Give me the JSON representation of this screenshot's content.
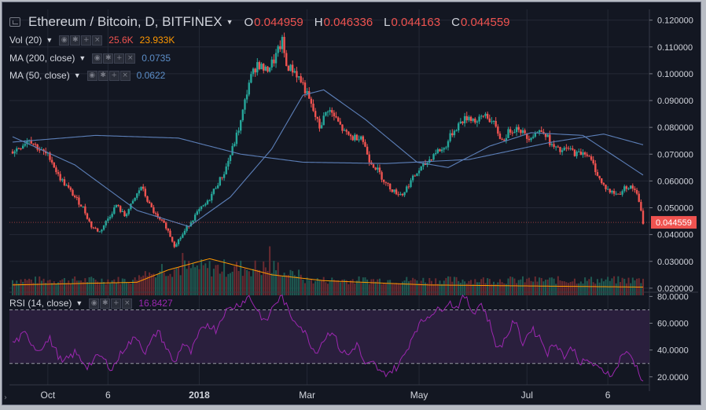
{
  "header": {
    "symbol_title": "Ethereum / Bitcoin, D, BITFINEX",
    "ohlc": [
      {
        "key": "O",
        "value": "0.044959"
      },
      {
        "key": "H",
        "value": "0.046336"
      },
      {
        "key": "L",
        "value": "0.044163"
      },
      {
        "key": "C",
        "value": "0.044559"
      }
    ]
  },
  "indicators": [
    {
      "id": "vol",
      "label": "Vol (20)",
      "values": [
        "25.6K",
        "23.933K"
      ],
      "colors": [
        "#ef5350",
        "#ff9800"
      ]
    },
    {
      "id": "ma200",
      "label": "MA (200, close)",
      "values": [
        "0.0735"
      ],
      "colors": [
        "#5c7fb8"
      ]
    },
    {
      "id": "ma50",
      "label": "MA (50, close)",
      "values": [
        "0.0622"
      ],
      "colors": [
        "#5c7fb8"
      ]
    }
  ],
  "rsi": {
    "label": "RSI (14, close)",
    "value": "16.8427",
    "color": "#9c27b0"
  },
  "icons": [
    "chart-badge-icon",
    "eye-icon",
    "gear-icon",
    "plus-icon",
    "close-icon"
  ],
  "colors": {
    "up": "#26a69a",
    "down": "#ef5350",
    "ma": "#5c7fb8",
    "vol_ma": "#ff9800",
    "rsi": "#9c27b0",
    "rsi_band": "#2a1f3d"
  },
  "chart_data": [
    {
      "type": "candlestick",
      "title": "Ethereum / Bitcoin, D, BITFINEX",
      "x_tick_labels": [
        "Oct",
        "6",
        "2018",
        "Mar",
        "May",
        "Jul",
        "6"
      ],
      "y_tick_labels": [
        "0.020000",
        "0.030000",
        "0.040000",
        "0.050000",
        "0.060000",
        "0.070000",
        "0.080000",
        "0.090000",
        "0.100000",
        "0.110000",
        "0.120000"
      ],
      "ylim": [
        0.0185,
        0.124
      ],
      "last_price_label": "0.044559",
      "close_path": [
        [
          0,
          0.071
        ],
        [
          4,
          0.073
        ],
        [
          8,
          0.076
        ],
        [
          10,
          0.074
        ],
        [
          14,
          0.071
        ],
        [
          18,
          0.069
        ],
        [
          22,
          0.062
        ],
        [
          26,
          0.058
        ],
        [
          30,
          0.054
        ],
        [
          34,
          0.05
        ],
        [
          38,
          0.043
        ],
        [
          42,
          0.041
        ],
        [
          46,
          0.046
        ],
        [
          50,
          0.051
        ],
        [
          54,
          0.047
        ],
        [
          58,
          0.052
        ],
        [
          62,
          0.058
        ],
        [
          66,
          0.051
        ],
        [
          70,
          0.046
        ],
        [
          74,
          0.043
        ],
        [
          78,
          0.036
        ],
        [
          82,
          0.04
        ],
        [
          86,
          0.045
        ],
        [
          90,
          0.049
        ],
        [
          94,
          0.052
        ],
        [
          98,
          0.058
        ],
        [
          102,
          0.063
        ],
        [
          106,
          0.072
        ],
        [
          110,
          0.082
        ],
        [
          114,
          0.097
        ],
        [
          118,
          0.104
        ],
        [
          122,
          0.101
        ],
        [
          126,
          0.105
        ],
        [
          130,
          0.112
        ],
        [
          132,
          0.103
        ],
        [
          136,
          0.101
        ],
        [
          140,
          0.096
        ],
        [
          144,
          0.088
        ],
        [
          148,
          0.08
        ],
        [
          152,
          0.087
        ],
        [
          156,
          0.083
        ],
        [
          160,
          0.078
        ],
        [
          164,
          0.076
        ],
        [
          168,
          0.077
        ],
        [
          172,
          0.068
        ],
        [
          176,
          0.064
        ],
        [
          180,
          0.059
        ],
        [
          184,
          0.056
        ],
        [
          188,
          0.055
        ],
        [
          192,
          0.06
        ],
        [
          196,
          0.064
        ],
        [
          200,
          0.067
        ],
        [
          204,
          0.071
        ],
        [
          208,
          0.072
        ],
        [
          212,
          0.078
        ],
        [
          216,
          0.082
        ],
        [
          220,
          0.084
        ],
        [
          224,
          0.082
        ],
        [
          228,
          0.085
        ],
        [
          232,
          0.081
        ],
        [
          236,
          0.075
        ],
        [
          240,
          0.079
        ],
        [
          244,
          0.08
        ],
        [
          248,
          0.076
        ],
        [
          252,
          0.078
        ],
        [
          256,
          0.079
        ],
        [
          260,
          0.073
        ],
        [
          264,
          0.071
        ],
        [
          268,
          0.072
        ],
        [
          272,
          0.07
        ],
        [
          276,
          0.071
        ],
        [
          280,
          0.066
        ],
        [
          284,
          0.059
        ],
        [
          288,
          0.056
        ],
        [
          292,
          0.055
        ],
        [
          296,
          0.058
        ],
        [
          300,
          0.057
        ],
        [
          302,
          0.052
        ],
        [
          304,
          0.0446
        ]
      ],
      "ma200": [
        [
          0,
          0.0745
        ],
        [
          40,
          0.077
        ],
        [
          80,
          0.076
        ],
        [
          110,
          0.07
        ],
        [
          140,
          0.067
        ],
        [
          180,
          0.0665
        ],
        [
          220,
          0.068
        ],
        [
          260,
          0.0745
        ],
        [
          285,
          0.0775
        ],
        [
          304,
          0.0735
        ]
      ],
      "ma50": [
        [
          0,
          0.0765
        ],
        [
          30,
          0.066
        ],
        [
          60,
          0.049
        ],
        [
          85,
          0.043
        ],
        [
          105,
          0.054
        ],
        [
          125,
          0.072
        ],
        [
          140,
          0.092
        ],
        [
          150,
          0.094
        ],
        [
          170,
          0.083
        ],
        [
          195,
          0.067
        ],
        [
          210,
          0.065
        ],
        [
          230,
          0.073
        ],
        [
          250,
          0.078
        ],
        [
          275,
          0.077
        ],
        [
          304,
          0.0622
        ]
      ],
      "volume_ma_path": [
        [
          0,
          0.0212
        ],
        [
          60,
          0.0222
        ],
        [
          75,
          0.0268
        ],
        [
          95,
          0.031
        ],
        [
          125,
          0.025
        ],
        [
          150,
          0.0228
        ],
        [
          200,
          0.0212
        ],
        [
          304,
          0.0204
        ]
      ]
    },
    {
      "type": "line",
      "title": "RSI (14, close)",
      "y_tick_labels": [
        "20.0000",
        "40.0000",
        "60.0000",
        "80.0000"
      ],
      "ylim": [
        14,
        82
      ],
      "band": [
        30,
        70
      ],
      "rsi_path": [
        [
          0,
          45
        ],
        [
          6,
          52
        ],
        [
          12,
          40
        ],
        [
          18,
          48
        ],
        [
          24,
          30
        ],
        [
          30,
          38
        ],
        [
          36,
          28
        ],
        [
          42,
          36
        ],
        [
          48,
          26
        ],
        [
          54,
          42
        ],
        [
          60,
          50
        ],
        [
          64,
          38
        ],
        [
          70,
          55
        ],
        [
          74,
          42
        ],
        [
          78,
          30
        ],
        [
          82,
          45
        ],
        [
          86,
          38
        ],
        [
          90,
          52
        ],
        [
          94,
          60
        ],
        [
          98,
          55
        ],
        [
          102,
          68
        ],
        [
          106,
          72
        ],
        [
          110,
          75
        ],
        [
          114,
          80
        ],
        [
          118,
          70
        ],
        [
          122,
          60
        ],
        [
          126,
          74
        ],
        [
          130,
          80
        ],
        [
          134,
          65
        ],
        [
          138,
          60
        ],
        [
          142,
          50
        ],
        [
          146,
          38
        ],
        [
          150,
          48
        ],
        [
          154,
          55
        ],
        [
          158,
          40
        ],
        [
          162,
          36
        ],
        [
          166,
          45
        ],
        [
          170,
          28
        ],
        [
          174,
          30
        ],
        [
          178,
          22
        ],
        [
          182,
          24
        ],
        [
          186,
          28
        ],
        [
          190,
          40
        ],
        [
          194,
          55
        ],
        [
          198,
          62
        ],
        [
          202,
          68
        ],
        [
          206,
          70
        ],
        [
          210,
          76
        ],
        [
          214,
          72
        ],
        [
          218,
          80
        ],
        [
          222,
          68
        ],
        [
          226,
          75
        ],
        [
          230,
          60
        ],
        [
          234,
          40
        ],
        [
          238,
          50
        ],
        [
          242,
          62
        ],
        [
          246,
          45
        ],
        [
          250,
          56
        ],
        [
          254,
          50
        ],
        [
          258,
          38
        ],
        [
          262,
          46
        ],
        [
          266,
          35
        ],
        [
          270,
          42
        ],
        [
          274,
          30
        ],
        [
          278,
          32
        ],
        [
          282,
          26
        ],
        [
          286,
          24
        ],
        [
          290,
          22
        ],
        [
          294,
          38
        ],
        [
          298,
          36
        ],
        [
          302,
          24
        ],
        [
          304,
          16.8427
        ]
      ]
    }
  ]
}
